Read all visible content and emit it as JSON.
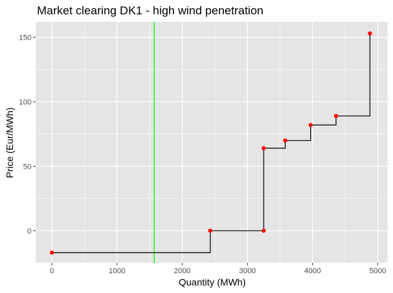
{
  "chart_data": {
    "type": "line",
    "title": "Market clearing DK1 - high wind penetration",
    "xlabel": "Quantity (MWh)",
    "ylabel": "Price (Eur/MWh)",
    "xlim": [
      -250,
      5150
    ],
    "ylim": [
      -25,
      162
    ],
    "x_ticks": [
      0,
      1000,
      2000,
      3000,
      4000,
      5000
    ],
    "y_ticks": [
      0,
      50,
      100,
      150
    ],
    "grid": true,
    "legend": "none",
    "step_series": {
      "x": [
        0,
        2430,
        3250,
        3250,
        3580,
        3970,
        4360,
        4880
      ],
      "y": [
        -17,
        0,
        0,
        64,
        70,
        82,
        89,
        153
      ]
    },
    "points": {
      "x": [
        0,
        2430,
        3250,
        3250,
        3580,
        3970,
        4360,
        4880
      ],
      "y": [
        -17,
        0,
        0,
        64,
        70,
        82,
        89,
        153
      ]
    },
    "vertical_line_x": 1570,
    "colors": {
      "panel": "#e5e5e5",
      "grid": "#ffffff",
      "step": "#000000",
      "points": "#ff0000",
      "vline": "#00ff00"
    }
  }
}
